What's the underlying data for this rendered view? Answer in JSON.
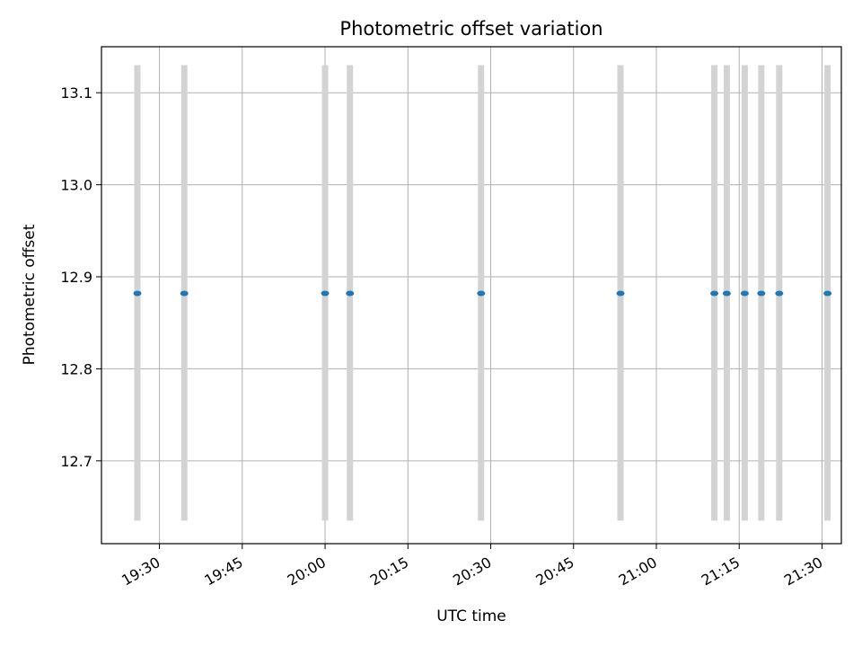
{
  "chart_data": {
    "type": "scatter",
    "title": "Photometric offset variation",
    "xlabel": "UTC time",
    "ylabel": "Photometric offset",
    "x_ticks": [
      "19:30",
      "19:45",
      "20:00",
      "20:15",
      "20:30",
      "20:45",
      "21:00",
      "21:15",
      "21:30"
    ],
    "y_ticks": [
      "12.7",
      "12.8",
      "12.9",
      "13.0",
      "13.1"
    ],
    "xlim": [
      "19:19:30",
      "21:33:30"
    ],
    "ylim": [
      12.61,
      13.15
    ],
    "grid": true,
    "colors": {
      "points": "#1f77b4",
      "errorbars": "#d3d3d3",
      "grid": "#b0b0b0"
    },
    "points": [
      {
        "x": "19:26:00",
        "y": 12.882,
        "err_low": 12.635,
        "err_high": 13.13
      },
      {
        "x": "19:34:30",
        "y": 12.882,
        "err_low": 12.635,
        "err_high": 13.13
      },
      {
        "x": "20:00:00",
        "y": 12.882,
        "err_low": 12.635,
        "err_high": 13.13
      },
      {
        "x": "20:04:30",
        "y": 12.882,
        "err_low": 12.635,
        "err_high": 13.13
      },
      {
        "x": "20:28:15",
        "y": 12.882,
        "err_low": 12.635,
        "err_high": 13.13
      },
      {
        "x": "20:53:30",
        "y": 12.882,
        "err_low": 12.635,
        "err_high": 13.13
      },
      {
        "x": "21:10:30",
        "y": 12.882,
        "err_low": 12.635,
        "err_high": 13.13
      },
      {
        "x": "21:12:45",
        "y": 12.882,
        "err_low": 12.635,
        "err_high": 13.13
      },
      {
        "x": "21:16:00",
        "y": 12.882,
        "err_low": 12.635,
        "err_high": 13.13
      },
      {
        "x": "21:19:00",
        "y": 12.882,
        "err_low": 12.635,
        "err_high": 13.13
      },
      {
        "x": "21:22:15",
        "y": 12.882,
        "err_low": 12.635,
        "err_high": 13.13
      },
      {
        "x": "21:31:00",
        "y": 12.882,
        "err_low": 12.635,
        "err_high": 13.13
      }
    ]
  }
}
